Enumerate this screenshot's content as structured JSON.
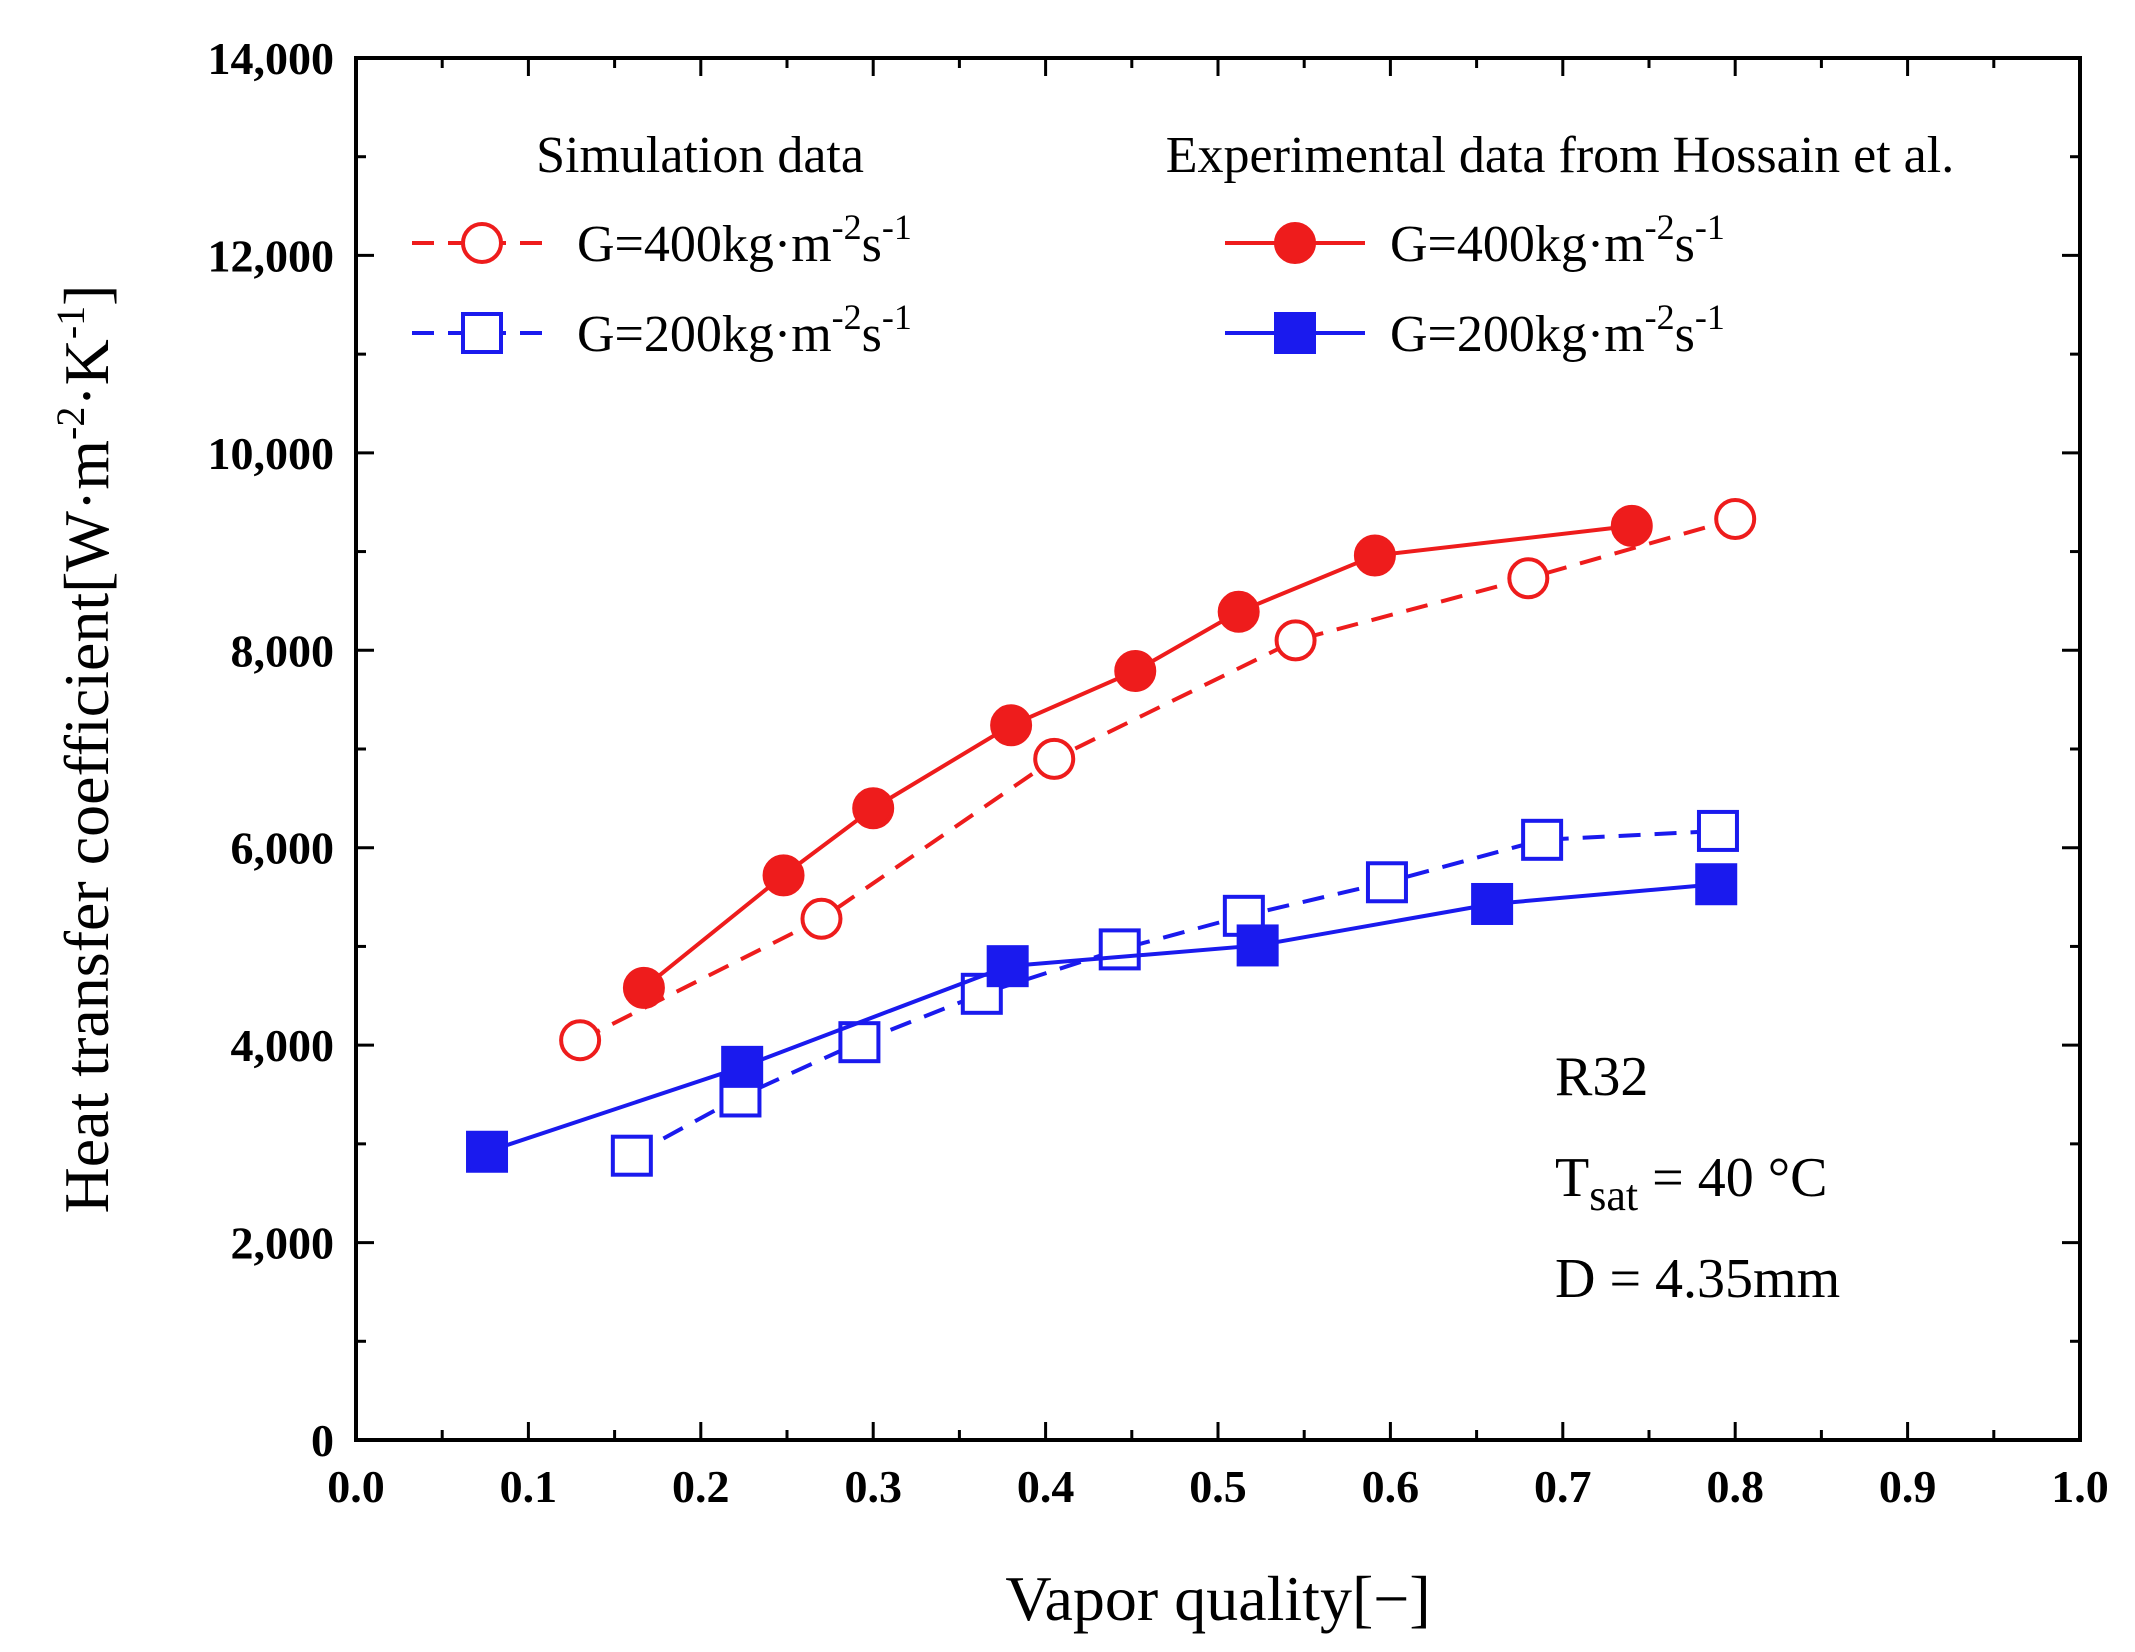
{
  "chart_data": {
    "type": "line",
    "xlabel": "Vapor quality[−]",
    "ylabel_main": "Heat transfer coefficient",
    "ylabel_unit": "[W·m",
    "ylabel_exp1": "-2",
    "ylabel_mid": "·K",
    "ylabel_exp2": "-1",
    "ylabel_close": "]",
    "xlim": [
      0.0,
      1.0
    ],
    "ylim": [
      0,
      14000
    ],
    "xticks": [
      "0.0",
      "0.1",
      "0.2",
      "0.3",
      "0.4",
      "0.5",
      "0.6",
      "0.7",
      "0.8",
      "0.9",
      "1.0"
    ],
    "yticks": [
      "0",
      "2,000",
      "4,000",
      "6,000",
      "8,000",
      "10,000",
      "12,000",
      "14,000"
    ],
    "legend_headers": {
      "simulation": "Simulation data",
      "experimental": "Experimental data from Hossain et al."
    },
    "series": [
      {
        "name": "Simulation G=400",
        "group": "simulation",
        "label_main": "G=400kg·m",
        "label_exp1": "-2",
        "label_mid": "s",
        "label_exp2": "-1",
        "color": "#ee1c1c",
        "marker": "circle-open",
        "dashed": true,
        "x": [
          0.13,
          0.27,
          0.405,
          0.545,
          0.68,
          0.8
        ],
        "y": [
          4050,
          5280,
          6900,
          8100,
          8730,
          9330
        ]
      },
      {
        "name": "Simulation G=200",
        "group": "simulation",
        "label_main": "G=200kg·m",
        "label_exp1": "-2",
        "label_mid": "s",
        "label_exp2": "-1",
        "color": "#1a1aee",
        "marker": "square-open",
        "dashed": true,
        "x": [
          0.16,
          0.223,
          0.292,
          0.363,
          0.443,
          0.515,
          0.598,
          0.688,
          0.79
        ],
        "y": [
          2880,
          3480,
          4030,
          4520,
          4970,
          5310,
          5650,
          6080,
          6170
        ]
      },
      {
        "name": "Experimental G=400",
        "group": "experimental",
        "label_main": "G=400kg·m",
        "label_exp1": "-2",
        "label_mid": "s",
        "label_exp2": "-1",
        "color": "#ee1c1c",
        "marker": "circle-filled",
        "dashed": false,
        "x": [
          0.167,
          0.248,
          0.3,
          0.38,
          0.452,
          0.512,
          0.591,
          0.74
        ],
        "y": [
          4580,
          5720,
          6400,
          7240,
          7790,
          8390,
          8960,
          9260
        ]
      },
      {
        "name": "Experimental G=200",
        "group": "experimental",
        "label_main": "G=200kg·m",
        "label_exp1": "-2",
        "label_mid": "s",
        "label_exp2": "-1",
        "color": "#1a1aee",
        "marker": "square-filled",
        "dashed": false,
        "x": [
          0.076,
          0.224,
          0.378,
          0.523,
          0.659,
          0.789
        ],
        "y": [
          2920,
          3780,
          4800,
          5010,
          5430,
          5630
        ]
      }
    ],
    "annotations": {
      "refrigerant": "R32",
      "tsat_prefix": "T",
      "tsat_sub": "sat",
      "tsat_value": " = 40 °C",
      "diameter": "D = 4.35mm"
    }
  }
}
